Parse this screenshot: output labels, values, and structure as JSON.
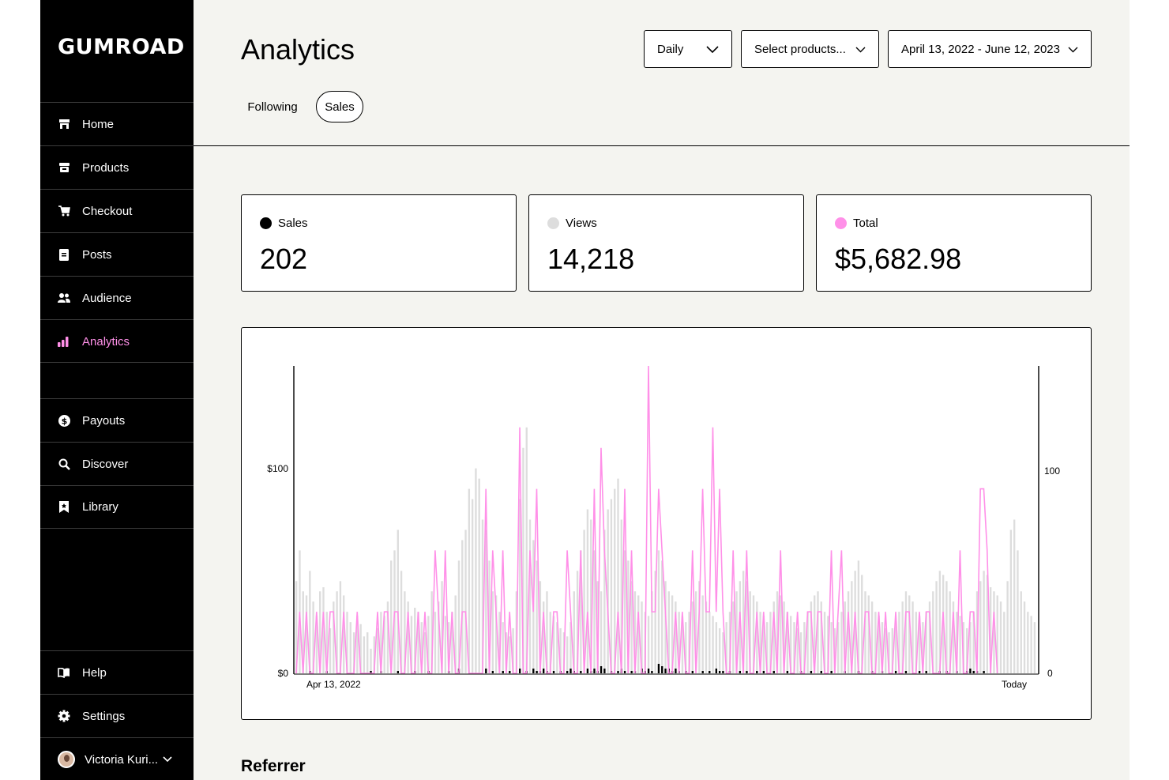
{
  "app": {
    "logo": "GUMROAD"
  },
  "sidebar": {
    "items": [
      {
        "label": "Home",
        "icon": "home-icon"
      },
      {
        "label": "Products",
        "icon": "archive-icon"
      },
      {
        "label": "Checkout",
        "icon": "cart-icon"
      },
      {
        "label": "Posts",
        "icon": "document-icon"
      },
      {
        "label": "Audience",
        "icon": "people-icon"
      },
      {
        "label": "Analytics",
        "icon": "bar-chart-icon",
        "active": true
      },
      {
        "label": "Payouts",
        "icon": "dollar-circle-icon"
      },
      {
        "label": "Discover",
        "icon": "search-icon"
      },
      {
        "label": "Library",
        "icon": "bookmark-icon"
      },
      {
        "label": "Help",
        "icon": "book-icon"
      },
      {
        "label": "Settings",
        "icon": "gear-icon"
      }
    ],
    "user": {
      "name": "Victoria Kuri...",
      "icon": "chevron-down-icon"
    }
  },
  "header": {
    "title": "Analytics",
    "tabs": [
      {
        "label": "Following"
      },
      {
        "label": "Sales",
        "selected": true
      }
    ],
    "period_dropdown": "Daily",
    "products_dropdown": "Select products...",
    "date_range": "April 13, 2022 - June 12, 2023"
  },
  "stats": [
    {
      "label": "Sales",
      "value": "202",
      "color": "#000000"
    },
    {
      "label": "Views",
      "value": "14,218",
      "color": "#dddddd"
    },
    {
      "label": "Total",
      "value": "$5,682.98",
      "color": "#ff90e8"
    }
  ],
  "colors": {
    "accent": "#ff90e8",
    "views": "#dddddd",
    "sales": "#000000"
  },
  "chart_data": {
    "type": "bar",
    "x_start_label": "Apr 13, 2022",
    "x_end_label": "Today",
    "y_left_ticks": [
      "$0",
      "$100"
    ],
    "y_right_ticks": [
      "0",
      "100"
    ],
    "ylim_left": [
      0,
      150
    ],
    "ylim_right": [
      0,
      150
    ],
    "series": [
      {
        "kind": "bar",
        "color": "#dddddd",
        "values": [
          45,
          60,
          40,
          38,
          50,
          35,
          28,
          40,
          42,
          30,
          22,
          35,
          40,
          45,
          38,
          30,
          25,
          20,
          28,
          24,
          18,
          20,
          12,
          18,
          22,
          30,
          28,
          35,
          55,
          60,
          70,
          50,
          40,
          35,
          28,
          32,
          30,
          25,
          20,
          28,
          40,
          30,
          35,
          45,
          28,
          25,
          30,
          38,
          55,
          65,
          70,
          90,
          85,
          100,
          95,
          75,
          70,
          55,
          40,
          38,
          30,
          25,
          20,
          18,
          22,
          40,
          85,
          110,
          120,
          75,
          65,
          55,
          45,
          35,
          40,
          30,
          28,
          25,
          22,
          20,
          18,
          25,
          40,
          50,
          60,
          70,
          80,
          75,
          60,
          45,
          40,
          70,
          80,
          85,
          90,
          95,
          75,
          60,
          55,
          45,
          40,
          38,
          35,
          30,
          28,
          40,
          50,
          60,
          55,
          45,
          40,
          38,
          35,
          30,
          28,
          25,
          30,
          35,
          40,
          45,
          38,
          35,
          30,
          28,
          25,
          22,
          20,
          25,
          30,
          35,
          40,
          45,
          50,
          45,
          40,
          38,
          35,
          30,
          28,
          25,
          30,
          35,
          40,
          38,
          35,
          30,
          28,
          25,
          22,
          20,
          25,
          30,
          35,
          38,
          40,
          35,
          30,
          28,
          25,
          22,
          25,
          30,
          35,
          40,
          45,
          50,
          55,
          48,
          40,
          38,
          35,
          30,
          28,
          25,
          22,
          20,
          22,
          25,
          30,
          35,
          40,
          38,
          35,
          30,
          28,
          25,
          30,
          35,
          40,
          45,
          50,
          48,
          45,
          40,
          35,
          30,
          28,
          25,
          22,
          25,
          30,
          40,
          45,
          50,
          48,
          42,
          40,
          38,
          35,
          30,
          45,
          70,
          75,
          60,
          40,
          35,
          30,
          28,
          25
        ]
      },
      {
        "kind": "line",
        "color": "#ff90e8",
        "values": [
          0,
          30,
          0,
          30,
          0,
          0,
          30,
          0,
          30,
          0,
          30,
          30,
          0,
          0,
          30,
          0,
          0,
          0,
          30,
          0,
          0,
          0,
          0,
          0,
          30,
          0,
          30,
          30,
          0,
          30,
          30,
          0,
          0,
          30,
          0,
          0,
          30,
          0,
          30,
          0,
          0,
          60,
          30,
          0,
          60,
          0,
          30,
          0,
          0,
          30,
          30,
          0,
          0,
          0,
          0,
          0,
          90,
          0,
          60,
          30,
          0,
          60,
          0,
          30,
          0,
          0,
          120,
          0,
          0,
          60,
          30,
          90,
          0,
          30,
          0,
          0,
          30,
          30,
          0,
          0,
          60,
          30,
          0,
          0,
          60,
          0,
          30,
          0,
          90,
          0,
          110,
          60,
          30,
          0,
          0,
          30,
          0,
          90,
          0,
          60,
          0,
          30,
          0,
          0,
          150,
          30,
          30,
          90,
          60,
          30,
          0,
          0,
          30,
          0,
          30,
          0,
          0,
          60,
          0,
          30,
          90,
          30,
          30,
          120,
          30,
          90,
          30,
          0,
          0,
          60,
          0,
          30,
          0,
          60,
          0,
          0,
          30,
          0,
          30,
          0,
          0,
          30,
          0,
          60,
          0,
          30,
          0,
          0,
          30,
          0,
          0,
          30,
          30,
          0,
          30,
          30,
          0,
          0,
          60,
          0,
          30,
          60,
          0,
          30,
          0,
          30,
          0,
          0,
          30,
          30,
          0,
          0,
          30,
          0,
          30,
          0,
          0,
          30,
          0,
          0,
          30,
          30,
          0,
          0,
          30,
          0,
          30,
          30,
          0,
          0,
          0,
          30,
          0,
          0,
          30,
          0,
          60,
          0,
          0,
          30,
          30,
          0,
          90,
          90,
          60,
          0,
          30,
          0
        ]
      },
      {
        "kind": "bar",
        "color": "#000000",
        "values": [
          0,
          0,
          0,
          0,
          1,
          0,
          0,
          0,
          0,
          1,
          0,
          0,
          0,
          0,
          0,
          0,
          0,
          0,
          0,
          0,
          0,
          0,
          1,
          0,
          0,
          1,
          0,
          0,
          0,
          0,
          1,
          0,
          0,
          0,
          0,
          1,
          0,
          0,
          0,
          1,
          0,
          0,
          0,
          0,
          0,
          1,
          0,
          0,
          2,
          0,
          0,
          0,
          0,
          0,
          0,
          0,
          2,
          0,
          1,
          0,
          0,
          1,
          0,
          1,
          0,
          0,
          2,
          0,
          1,
          0,
          2,
          1,
          1,
          2,
          1,
          0,
          1,
          0,
          1,
          0,
          1,
          2,
          1,
          0,
          1,
          0,
          2,
          1,
          2,
          1,
          3,
          2,
          0,
          1,
          0,
          1,
          2,
          1,
          0,
          1,
          1,
          0,
          2,
          1,
          2,
          1,
          0,
          4,
          3,
          2,
          2,
          1,
          2,
          1,
          0,
          1,
          0,
          1,
          0,
          0,
          1,
          0,
          1,
          0,
          2,
          1,
          1,
          0,
          1,
          0,
          0,
          1,
          0,
          1,
          0,
          0,
          1,
          0,
          1,
          0,
          0,
          1,
          0,
          0,
          0,
          1,
          0,
          0,
          0,
          1,
          0,
          0,
          1,
          0,
          0,
          1,
          0,
          0,
          1,
          0,
          0,
          0,
          1,
          0,
          0,
          0,
          1,
          0,
          0,
          0,
          1,
          0,
          0,
          1,
          0,
          0,
          0,
          1,
          0,
          0,
          1,
          0,
          0,
          0,
          1,
          0,
          1,
          0,
          0,
          0,
          1,
          0,
          1,
          0,
          0,
          1,
          0,
          0,
          1,
          2,
          1,
          1,
          0,
          1,
          0
        ]
      }
    ]
  },
  "sections": {
    "referrer_title": "Referrer"
  }
}
